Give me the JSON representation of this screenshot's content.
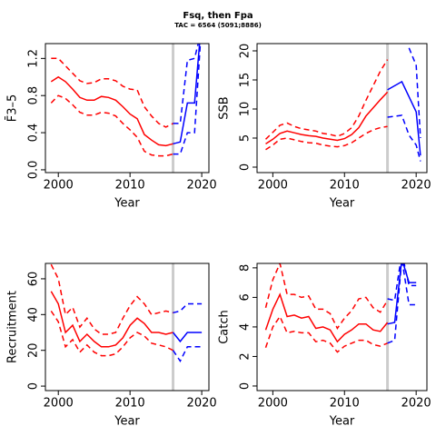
{
  "title": "Fsq, then Fpa",
  "subtitle": "TAC = 6564 (5091;8886)",
  "chart_data": [
    {
      "type": "line",
      "xlabel": "Year",
      "ylabel": "F̄3–5",
      "xlim": [
        1998.2,
        2021.0
      ],
      "ylim": [
        -0.03,
        1.36
      ],
      "xticks": [
        2000,
        2010,
        2020
      ],
      "yticks": [
        {
          "value": 0,
          "label": "0.0"
        },
        0.4,
        0.8,
        1.2
      ],
      "vline": 2016,
      "vline_color": "#cccccc",
      "series": [
        {
          "color": "#ff0000",
          "dash": false,
          "x": [
            1999,
            2000,
            2001,
            2002,
            2003,
            2004,
            2005,
            2006,
            2007,
            2008,
            2009,
            2010,
            2011,
            2012,
            2013,
            2014,
            2015,
            2016
          ],
          "values": [
            0.95,
            1.0,
            0.95,
            0.87,
            0.78,
            0.75,
            0.75,
            0.79,
            0.78,
            0.75,
            0.68,
            0.6,
            0.55,
            0.38,
            0.32,
            0.27,
            0.26,
            0.28
          ]
        },
        {
          "color": "#ff0000",
          "dash": true,
          "x": [
            1999,
            2000,
            2001,
            2002,
            2003,
            2004,
            2005,
            2006,
            2007,
            2008,
            2009,
            2010,
            2011,
            2012,
            2013,
            2014,
            2015,
            2016
          ],
          "values": [
            0.72,
            0.8,
            0.77,
            0.7,
            0.62,
            0.59,
            0.59,
            0.62,
            0.61,
            0.58,
            0.5,
            0.43,
            0.35,
            0.2,
            0.16,
            0.15,
            0.15,
            0.17
          ]
        },
        {
          "color": "#ff0000",
          "dash": true,
          "x": [
            1999,
            2000,
            2001,
            2002,
            2003,
            2004,
            2005,
            2006,
            2007,
            2008,
            2009,
            2010,
            2011,
            2012,
            2013,
            2014,
            2015,
            2016
          ],
          "values": [
            1.2,
            1.2,
            1.12,
            1.04,
            0.96,
            0.93,
            0.94,
            0.98,
            0.98,
            0.96,
            0.9,
            0.87,
            0.86,
            0.68,
            0.58,
            0.5,
            0.46,
            0.5
          ]
        },
        {
          "color": "#0000ff",
          "dash": false,
          "x": [
            2016,
            2017,
            2018,
            2019,
            2019.8
          ],
          "values": [
            0.28,
            0.3,
            0.72,
            0.72,
            1.45
          ]
        },
        {
          "color": "#0000ff",
          "dash": true,
          "x": [
            2016,
            2017,
            2018,
            2019,
            2019.8
          ],
          "values": [
            0.17,
            0.17,
            0.4,
            0.4,
            1.35
          ]
        },
        {
          "color": "#0000ff",
          "dash": true,
          "x": [
            2016,
            2017,
            2018,
            2019,
            2019.8
          ],
          "values": [
            0.5,
            0.5,
            1.18,
            1.2,
            1.45
          ]
        }
      ]
    },
    {
      "type": "line",
      "xlabel": "Year",
      "ylabel": "SSB",
      "xlim": [
        1997.8,
        2021.5
      ],
      "ylim": [
        -0.94,
        21.25
      ],
      "xticks": [
        2000,
        2010,
        2020
      ],
      "yticks": [
        0,
        5,
        10,
        15,
        20
      ],
      "vline": 2016,
      "vline_color": "#cccccc",
      "series": [
        {
          "color": "#ff0000",
          "dash": false,
          "x": [
            1999,
            2000,
            2001,
            2002,
            2003,
            2004,
            2005,
            2006,
            2007,
            2008,
            2009,
            2010,
            2011,
            2012,
            2013,
            2014,
            2015,
            2016
          ],
          "values": [
            4,
            4.8,
            5.8,
            6.2,
            5.9,
            5.6,
            5.4,
            5.3,
            5.0,
            4.8,
            4.6,
            4.9,
            5.6,
            6.8,
            8.8,
            10.2,
            11.6,
            12.9
          ]
        },
        {
          "color": "#ff0000",
          "dash": true,
          "x": [
            1999,
            2000,
            2001,
            2002,
            2003,
            2004,
            2005,
            2006,
            2007,
            2008,
            2009,
            2010,
            2011,
            2012,
            2013,
            2014,
            2015,
            2016
          ],
          "values": [
            3.0,
            3.8,
            4.8,
            5.0,
            4.7,
            4.4,
            4.2,
            4.1,
            3.8,
            3.6,
            3.5,
            3.7,
            4.2,
            5.0,
            5.8,
            6.4,
            6.8,
            7.0
          ]
        },
        {
          "color": "#ff0000",
          "dash": true,
          "x": [
            1999,
            2000,
            2001,
            2002,
            2003,
            2004,
            2005,
            2006,
            2007,
            2008,
            2009,
            2010,
            2011,
            2012,
            2013,
            2014,
            2015,
            2016
          ],
          "values": [
            4.8,
            6,
            7.2,
            7.6,
            7.0,
            6.6,
            6.4,
            6.2,
            5.8,
            5.6,
            5.3,
            5.8,
            6.8,
            8.8,
            11.5,
            14,
            16.5,
            18.5
          ]
        },
        {
          "color": "#0000ff",
          "dash": false,
          "x": [
            2016,
            2018,
            2020,
            2020.6
          ],
          "values": [
            13.3,
            14.7,
            9.5,
            2
          ]
        },
        {
          "color": "#0000ff",
          "dash": true,
          "x": [
            2016,
            2018,
            2019,
            2020,
            2020.6
          ],
          "values": [
            8.6,
            8.9,
            5.5,
            3.8,
            1
          ]
        },
        {
          "color": "#0000ff",
          "dash": true,
          "x": [
            2019,
            2020,
            2020.6
          ],
          "values": [
            20.5,
            17.5,
            5
          ]
        }
      ]
    },
    {
      "type": "line",
      "xlabel": "Year",
      "ylabel": "Recruitment",
      "xlim": [
        1998.2,
        2021.0
      ],
      "ylim": [
        -2.5,
        68.6
      ],
      "xticks": [
        2000,
        2010,
        2020
      ],
      "yticks": [
        0,
        20,
        40,
        60
      ],
      "vline": 2016,
      "vline_color": "#cccccc",
      "series": [
        {
          "color": "#ff0000",
          "dash": false,
          "x": [
            1999,
            2000,
            2001,
            2002,
            2003,
            2004,
            2005,
            2006,
            2007,
            2008,
            2009,
            2010,
            2011,
            2012,
            2013,
            2014,
            2015,
            2016
          ],
          "values": [
            53,
            46,
            30,
            34,
            25,
            29,
            25,
            22,
            22,
            23,
            27,
            34,
            38,
            35,
            30,
            30,
            29,
            30
          ]
        },
        {
          "color": "#ff0000",
          "dash": true,
          "x": [
            1999,
            2000,
            2001,
            2002,
            2003,
            2004,
            2005,
            2006,
            2007,
            2008,
            2009,
            2010,
            2011,
            2012,
            2013,
            2014,
            2015,
            2016
          ],
          "values": [
            42,
            36,
            22,
            26,
            19,
            23,
            19,
            17,
            17,
            18,
            22,
            27,
            30,
            28,
            24,
            23,
            22,
            20
          ]
        },
        {
          "color": "#ff0000",
          "dash": true,
          "x": [
            1999,
            2000,
            2001,
            2002,
            2003,
            2004,
            2005,
            2006,
            2007,
            2008,
            2009,
            2010,
            2011,
            2012,
            2013,
            2014,
            2015,
            2016
          ],
          "values": [
            68,
            60,
            40,
            44,
            33,
            38,
            32,
            29,
            29,
            30,
            38,
            45,
            50,
            46,
            40,
            41,
            42,
            41
          ]
        },
        {
          "color": "#0000ff",
          "dash": false,
          "x": [
            2016,
            2017,
            2018,
            2019,
            2020
          ],
          "values": [
            30,
            25,
            30,
            30,
            30
          ]
        },
        {
          "color": "#0000ff",
          "dash": true,
          "x": [
            2016,
            2017,
            2018,
            2019,
            2020
          ],
          "values": [
            20,
            14,
            22,
            22,
            22
          ]
        },
        {
          "color": "#0000ff",
          "dash": true,
          "x": [
            2016,
            2017,
            2018,
            2019,
            2020
          ],
          "values": [
            41,
            42,
            46,
            46,
            46
          ]
        }
      ]
    },
    {
      "type": "line",
      "xlabel": "Year",
      "ylabel": "Catch",
      "xlim": [
        1997.8,
        2021.5
      ],
      "ylim": [
        -0.31,
        8.3
      ],
      "xticks": [
        2000,
        2010,
        2020
      ],
      "yticks": [
        0,
        2,
        4,
        6,
        8
      ],
      "vline": 2016,
      "vline_color": "#cccccc",
      "series": [
        {
          "color": "#ff0000",
          "dash": false,
          "x": [
            1999,
            2000,
            2001,
            2002,
            2003,
            2004,
            2005,
            2006,
            2007,
            2008,
            2009,
            2010,
            2011,
            2012,
            2013,
            2014,
            2015,
            2016
          ],
          "values": [
            3.8,
            5.2,
            6.2,
            4.7,
            4.8,
            4.6,
            4.7,
            3.9,
            4.0,
            3.8,
            3.0,
            3.5,
            3.8,
            4.2,
            4.2,
            3.8,
            3.7,
            4.3
          ]
        },
        {
          "color": "#ff0000",
          "dash": true,
          "x": [
            1999,
            2000,
            2001,
            2002,
            2003,
            2004,
            2005,
            2006,
            2007,
            2008,
            2009,
            2010,
            2011,
            2012,
            2013,
            2014,
            2015,
            2016
          ],
          "values": [
            2.6,
            4.0,
            4.7,
            3.6,
            3.7,
            3.6,
            3.6,
            3.0,
            3.1,
            2.9,
            2.3,
            2.7,
            2.9,
            3.1,
            3.1,
            2.8,
            2.7,
            2.9
          ]
        },
        {
          "color": "#ff0000",
          "dash": true,
          "x": [
            1999,
            2000,
            2001,
            2002,
            2003,
            2004,
            2005,
            2006,
            2007,
            2008,
            2009,
            2010,
            2011,
            2012,
            2013,
            2014,
            2015,
            2016
          ],
          "values": [
            5.3,
            7.2,
            8.3,
            6.2,
            6.2,
            6.0,
            6.1,
            5.2,
            5.2,
            4.9,
            3.9,
            4.6,
            5.1,
            5.9,
            6.0,
            5.3,
            5.0,
            5.8
          ]
        },
        {
          "color": "#0000ff",
          "dash": false,
          "x": [
            2016,
            2017,
            2018,
            2019,
            2020
          ],
          "values": [
            4.2,
            4.3,
            8.6,
            7,
            7
          ]
        },
        {
          "color": "#0000ff",
          "dash": true,
          "x": [
            2016,
            2017,
            2018,
            2019,
            2020
          ],
          "values": [
            2.9,
            3.1,
            8.6,
            5.5,
            5.5
          ]
        },
        {
          "color": "#0000ff",
          "dash": true,
          "x": [
            2016,
            2017,
            2018,
            2019,
            2020
          ],
          "values": [
            5.9,
            5.8,
            9,
            6.8,
            6.8
          ]
        }
      ]
    }
  ]
}
